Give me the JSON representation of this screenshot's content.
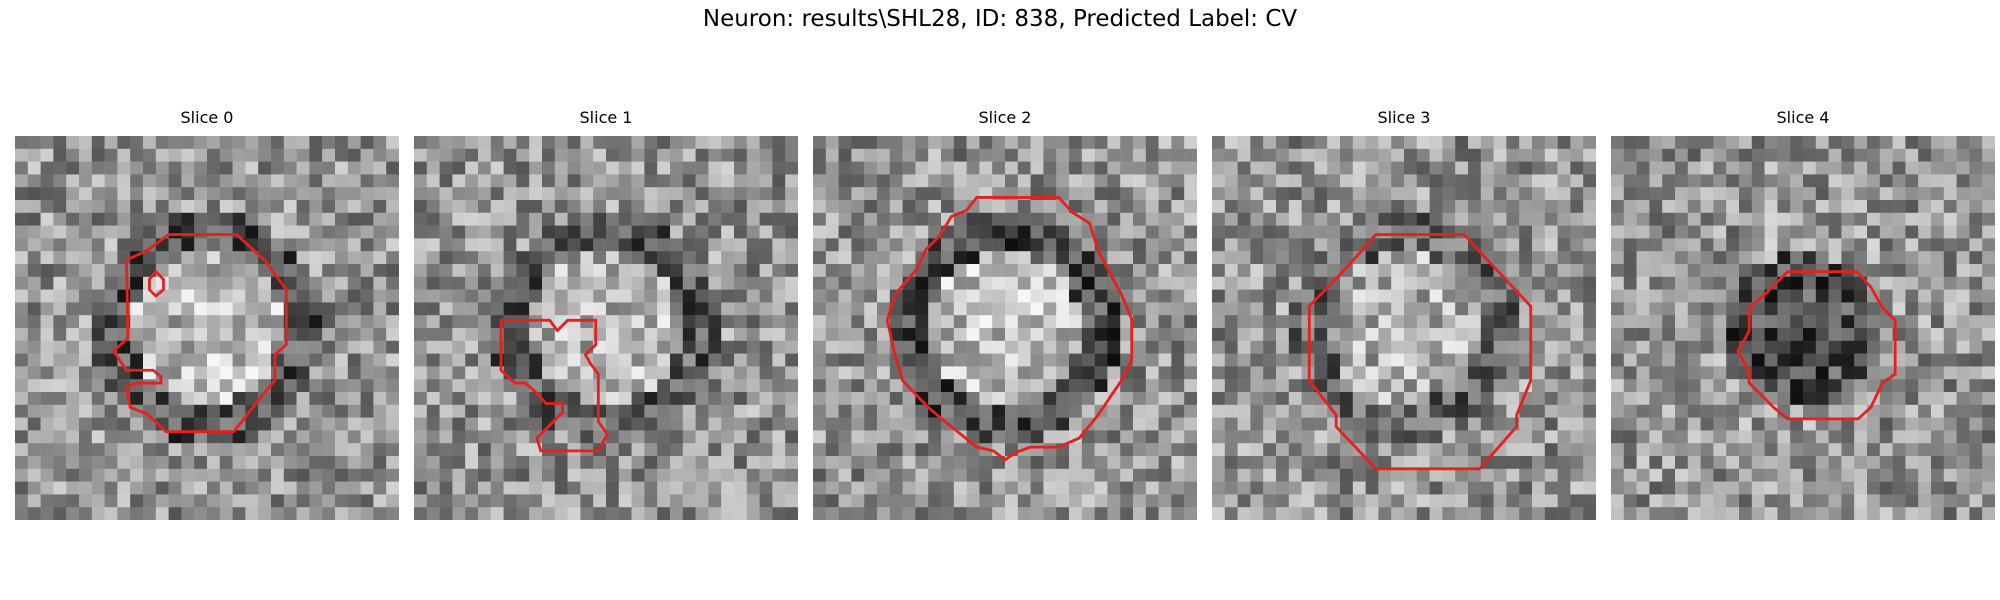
{
  "figure": {
    "title": "Neuron: results\\SHL28, ID: 838, Predicted Label: CV",
    "colormap": "gray",
    "contour_color": "#e8201c"
  },
  "slices": [
    {
      "title": "Slice 0",
      "seed": 11,
      "center_tone": 0.72,
      "ring_tone": 0.32
    },
    {
      "title": "Slice 1",
      "seed": 23,
      "center_tone": 0.7,
      "ring_tone": 0.36
    },
    {
      "title": "Slice 2",
      "seed": 37,
      "center_tone": 0.74,
      "ring_tone": 0.3
    },
    {
      "title": "Slice 3",
      "seed": 41,
      "center_tone": 0.68,
      "ring_tone": 0.4
    },
    {
      "title": "Slice 4",
      "seed": 53,
      "center_tone": 0.3,
      "ring_tone": 0.6
    }
  ]
}
